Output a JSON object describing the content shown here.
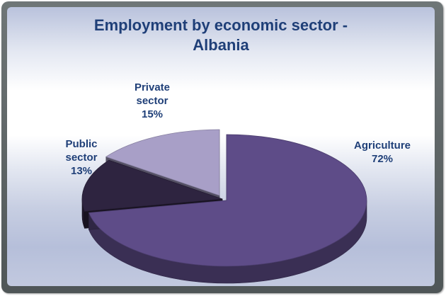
{
  "chart_data": {
    "type": "pie",
    "title_line1": "Employment by economic sector -",
    "title_line2": "Albania",
    "slices": [
      {
        "label_line1": "Agriculture",
        "label_line2": "",
        "value": 72,
        "value_text": "72%",
        "color": "#5e4c88"
      },
      {
        "label_line1": "Public",
        "label_line2": "sector",
        "value": 13,
        "value_text": "13%",
        "color": "#2e2440"
      },
      {
        "label_line1": "Private",
        "label_line2": "sector",
        "value": 15,
        "value_text": "15%",
        "color": "#a89fc7"
      }
    ]
  }
}
